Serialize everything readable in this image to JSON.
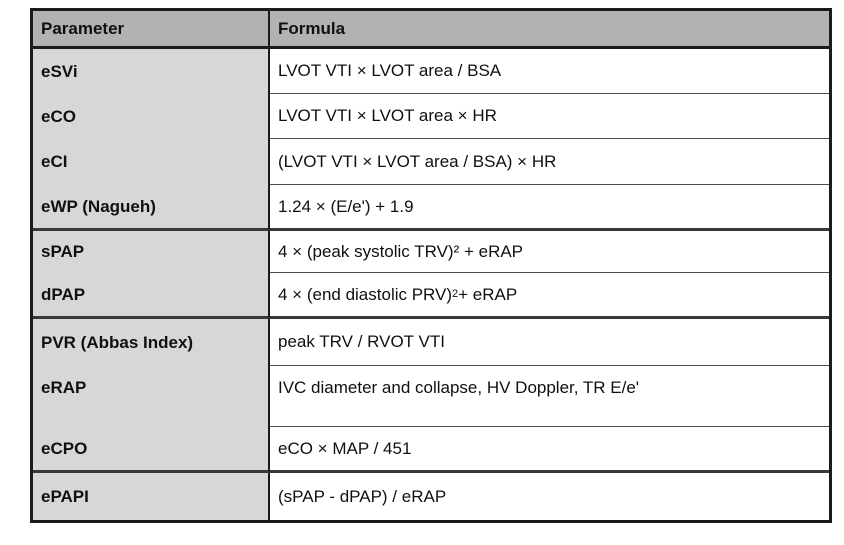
{
  "table": {
    "columns": [
      {
        "label": "Parameter"
      },
      {
        "label": "Formula"
      }
    ],
    "rows": [
      {
        "param": "eSVi",
        "formula": [
          {
            "t": "LVOT VTI × LVOT area / BSA"
          }
        ]
      },
      {
        "param": "eCO",
        "formula": [
          {
            "t": "LVOT VTI × LVOT area × HR"
          }
        ]
      },
      {
        "param": "eCI",
        "formula": [
          {
            "t": "(LVOT VTI × LVOT area / BSA) × HR"
          }
        ]
      },
      {
        "param": "eWP (Nagueh)",
        "formula": [
          {
            "t": "1.24 × (E/e') + 1.9"
          }
        ],
        "group_end": true
      },
      {
        "param": "sPAP",
        "formula": [
          {
            "t": "4 × (peak systolic TRV)² + eRAP"
          }
        ]
      },
      {
        "param": "dPAP",
        "formula": [
          {
            "t": "4 × (end diastolic PRV)"
          },
          {
            "t": "2",
            "sup": true
          },
          {
            "t": " + eRAP"
          }
        ],
        "group_end": true
      },
      {
        "param": "PVR (Abbas Index)",
        "formula": [
          {
            "t": "peak TRV / RVOT VTI"
          }
        ]
      },
      {
        "param": "eRAP",
        "formula": [
          {
            "t": "IVC diameter and collapse, HV Doppler, TR E/e'"
          }
        ],
        "tall": true
      },
      {
        "param": "eCPO",
        "formula": [
          {
            "t": "eCO × MAP / 451"
          }
        ],
        "group_end": true
      },
      {
        "param": "ePAPI",
        "formula": [
          {
            "t": "(sPAP - dPAP) / eRAP"
          }
        ]
      }
    ]
  },
  "colors": {
    "header_bg": "#b2b2b2",
    "param_column_bg": "#d7d7d7",
    "formula_bg": "#ffffff",
    "border": "#1b1b1b",
    "text": "#101010"
  }
}
